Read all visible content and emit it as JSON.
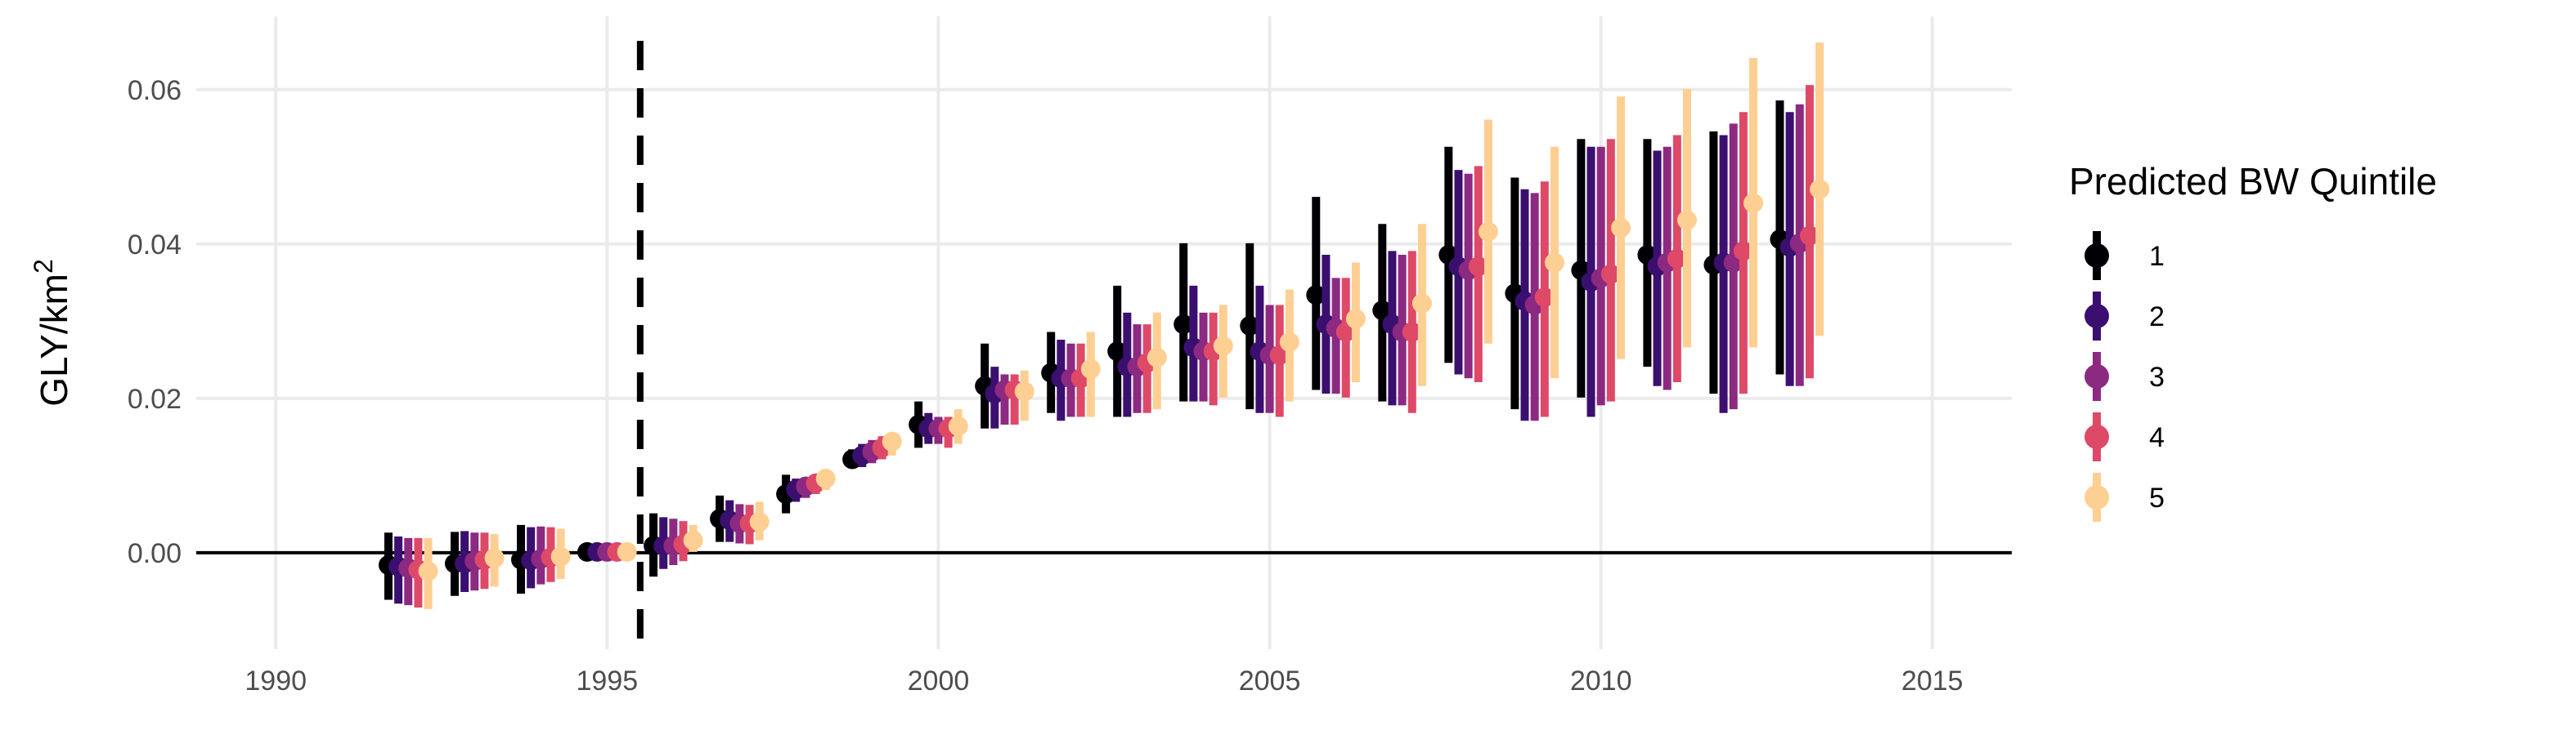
{
  "chart_data": {
    "type": "scatter",
    "subtype": "point-range with error bars, dodged by group",
    "xlabel": "",
    "ylabel": "GLY/km",
    "ylabel_superscript": "2",
    "xlim": [
      1988.8,
      2016.2
    ],
    "ylim": [
      -0.0125,
      0.0695
    ],
    "x_ticks": [
      1990,
      1995,
      2000,
      2005,
      2010,
      2015
    ],
    "x_tick_labels": [
      "1990",
      "1995",
      "2000",
      "2005",
      "2010",
      "2015"
    ],
    "y_ticks": [
      0.0,
      0.02,
      0.04,
      0.06
    ],
    "y_tick_labels": [
      "0.00",
      "0.02",
      "0.04",
      "0.06"
    ],
    "grid": true,
    "reference_lines": [
      {
        "orientation": "horizontal",
        "value": 0,
        "style": "solid",
        "color": "#000000"
      },
      {
        "orientation": "vertical",
        "value": 1995.5,
        "style": "dashed",
        "color": "#000000"
      }
    ],
    "dodge_offsets": [
      -0.3,
      -0.15,
      0.0,
      0.15,
      0.3
    ],
    "legend": {
      "title": "Predicted BW Quintile",
      "position": "right",
      "entries": [
        "1",
        "2",
        "3",
        "4",
        "5"
      ]
    },
    "series": [
      {
        "name": "1",
        "color": "#000004",
        "x": [
          1992,
          1993,
          1994,
          1995,
          1996,
          1997,
          1998,
          1999,
          2000,
          2001,
          2002,
          2003,
          2004,
          2005,
          2006,
          2007,
          2008,
          2009,
          2010,
          2011,
          2012,
          2013
        ],
        "y": [
          -0.0016,
          -0.0014,
          -0.0009,
          0.0001,
          0.0009,
          0.0044,
          0.0076,
          0.0121,
          0.0166,
          0.0216,
          0.0233,
          0.0261,
          0.0296,
          0.0294,
          0.0334,
          0.0314,
          0.0386,
          0.0336,
          0.0366,
          0.0386,
          0.0373,
          0.0406
        ],
        "ymin": [
          -0.0061,
          -0.0056,
          -0.0053,
          -0.0003,
          -0.0031,
          0.0014,
          0.0051,
          0.0111,
          0.0136,
          0.0161,
          0.0181,
          0.0176,
          0.0196,
          0.0186,
          0.0211,
          0.0196,
          0.0246,
          0.0186,
          0.0201,
          0.0241,
          0.0206,
          0.0231
        ],
        "ymax": [
          0.0026,
          0.0027,
          0.0036,
          0.0006,
          0.0051,
          0.0074,
          0.0101,
          0.0134,
          0.0196,
          0.0271,
          0.0286,
          0.0346,
          0.0401,
          0.0401,
          0.0461,
          0.0426,
          0.0526,
          0.0486,
          0.0536,
          0.0536,
          0.0546,
          0.0586
        ]
      },
      {
        "name": "2",
        "color": "#3b0f70",
        "x": [
          1992,
          1993,
          1994,
          1995,
          1996,
          1997,
          1998,
          1999,
          2000,
          2001,
          2002,
          2003,
          2004,
          2005,
          2006,
          2007,
          2008,
          2009,
          2010,
          2011,
          2012,
          2013
        ],
        "y": [
          -0.0018,
          -0.0014,
          -0.001,
          0.0001,
          0.0009,
          0.0042,
          0.0082,
          0.0126,
          0.0161,
          0.0206,
          0.0226,
          0.0241,
          0.0266,
          0.0261,
          0.0296,
          0.0296,
          0.0371,
          0.0326,
          0.0351,
          0.0371,
          0.0376,
          0.0396
        ],
        "ymin": [
          -0.0066,
          -0.0051,
          -0.0046,
          -0.0003,
          -0.0021,
          0.0014,
          0.0066,
          0.0111,
          0.0141,
          0.0161,
          0.0171,
          0.0176,
          0.0196,
          0.0181,
          0.0206,
          0.0191,
          0.0231,
          0.0171,
          0.0176,
          0.0216,
          0.0181,
          0.0216
        ],
        "ymax": [
          0.0021,
          0.0028,
          0.0033,
          0.0006,
          0.0046,
          0.0068,
          0.0096,
          0.0141,
          0.0181,
          0.0241,
          0.0276,
          0.0311,
          0.0346,
          0.0346,
          0.0386,
          0.0391,
          0.0496,
          0.0471,
          0.0526,
          0.0521,
          0.0541,
          0.0571
        ]
      },
      {
        "name": "3",
        "color": "#8c2981",
        "x": [
          1992,
          1993,
          1994,
          1995,
          1996,
          1997,
          1998,
          1999,
          2000,
          2001,
          2002,
          2003,
          2004,
          2005,
          2006,
          2007,
          2008,
          2009,
          2010,
          2011,
          2012,
          2013
        ],
        "y": [
          -0.002,
          -0.0011,
          -0.0008,
          0.0001,
          0.0009,
          0.0038,
          0.0086,
          0.0131,
          0.0161,
          0.0211,
          0.0226,
          0.0241,
          0.0261,
          0.0256,
          0.0291,
          0.0286,
          0.0366,
          0.0321,
          0.0356,
          0.0376,
          0.0376,
          0.0401
        ],
        "ymin": [
          -0.0068,
          -0.0049,
          -0.0041,
          -0.0003,
          -0.0016,
          0.0012,
          0.0071,
          0.0116,
          0.0141,
          0.0166,
          0.0176,
          0.0181,
          0.0196,
          0.0181,
          0.0206,
          0.0191,
          0.0226,
          0.0171,
          0.0191,
          0.0211,
          0.0186,
          0.0216
        ],
        "ymax": [
          0.0019,
          0.0026,
          0.0034,
          0.0006,
          0.0044,
          0.0063,
          0.0098,
          0.0146,
          0.0176,
          0.0231,
          0.0271,
          0.0296,
          0.0311,
          0.0321,
          0.0356,
          0.0386,
          0.0491,
          0.0466,
          0.0526,
          0.0526,
          0.0556,
          0.0581
        ]
      },
      {
        "name": "4",
        "color": "#de4968",
        "x": [
          1992,
          1993,
          1994,
          1995,
          1996,
          1997,
          1998,
          1999,
          2000,
          2001,
          2002,
          2003,
          2004,
          2005,
          2006,
          2007,
          2008,
          2009,
          2010,
          2011,
          2012,
          2013
        ],
        "y": [
          -0.0022,
          -0.0009,
          -0.0006,
          0.0001,
          0.0011,
          0.0038,
          0.009,
          0.0136,
          0.0161,
          0.0211,
          0.0226,
          0.0246,
          0.0261,
          0.0256,
          0.0286,
          0.0286,
          0.0371,
          0.0331,
          0.0361,
          0.0381,
          0.0391,
          0.0411
        ],
        "ymin": [
          -0.0071,
          -0.0047,
          -0.0038,
          -0.0003,
          -0.0011,
          0.0011,
          0.0076,
          0.0121,
          0.0136,
          0.0166,
          0.0176,
          0.0181,
          0.0191,
          0.0176,
          0.0201,
          0.0181,
          0.0221,
          0.0176,
          0.0196,
          0.0221,
          0.0206,
          0.0226
        ],
        "ymax": [
          0.0019,
          0.0026,
          0.0033,
          0.0006,
          0.0041,
          0.0062,
          0.0099,
          0.0151,
          0.0176,
          0.0231,
          0.0271,
          0.0296,
          0.0311,
          0.0321,
          0.0356,
          0.0391,
          0.0501,
          0.0481,
          0.0536,
          0.0541,
          0.0571,
          0.0606
        ]
      },
      {
        "name": "5",
        "color": "#fecf92",
        "x": [
          1992,
          1993,
          1994,
          1995,
          1996,
          1997,
          1998,
          1999,
          2000,
          2001,
          2002,
          2003,
          2004,
          2005,
          2006,
          2007,
          2008,
          2009,
          2010,
          2011,
          2012,
          2013
        ],
        "y": [
          -0.0024,
          -0.0007,
          -0.0005,
          0.0001,
          0.0016,
          0.004,
          0.0096,
          0.0144,
          0.0164,
          0.0209,
          0.0238,
          0.0253,
          0.0268,
          0.0273,
          0.0303,
          0.0323,
          0.0416,
          0.0376,
          0.0421,
          0.0431,
          0.0453,
          0.0471
        ],
        "ymin": [
          -0.0073,
          -0.0044,
          -0.0034,
          -0.0003,
          0.0001,
          0.0016,
          0.0081,
          0.0126,
          0.0141,
          0.0171,
          0.0176,
          0.0186,
          0.0201,
          0.0196,
          0.0221,
          0.0216,
          0.0271,
          0.0226,
          0.0251,
          0.0266,
          0.0266,
          0.0281
        ],
        "ymax": [
          0.0019,
          0.0024,
          0.0031,
          0.0006,
          0.0036,
          0.0066,
          0.0106,
          0.0156,
          0.0186,
          0.0236,
          0.0286,
          0.0311,
          0.0321,
          0.0341,
          0.0376,
          0.0426,
          0.0561,
          0.0526,
          0.0591,
          0.0601,
          0.0641,
          0.0661
        ]
      }
    ]
  }
}
